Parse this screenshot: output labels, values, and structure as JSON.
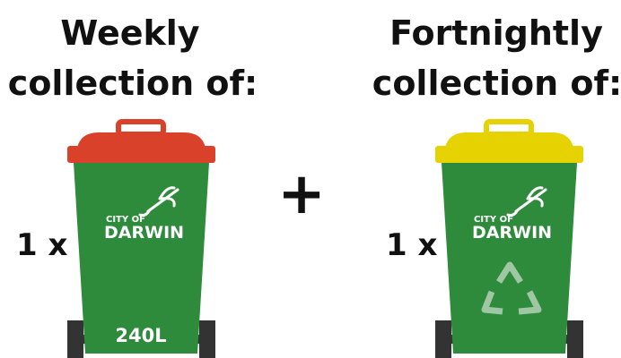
{
  "left": {
    "heading": [
      "Weekly",
      "collection of:"
    ],
    "quantity": "1 x",
    "bin": {
      "logo_small": "CITY OF",
      "logo_large": "DARWIN",
      "size": "240L"
    }
  },
  "operator": "+",
  "right": {
    "heading": [
      "Fortnightly",
      "collection of:"
    ],
    "quantity": "1 x",
    "bin": {
      "logo_small": "CITY OF",
      "logo_large": "DARWIN"
    }
  }
}
